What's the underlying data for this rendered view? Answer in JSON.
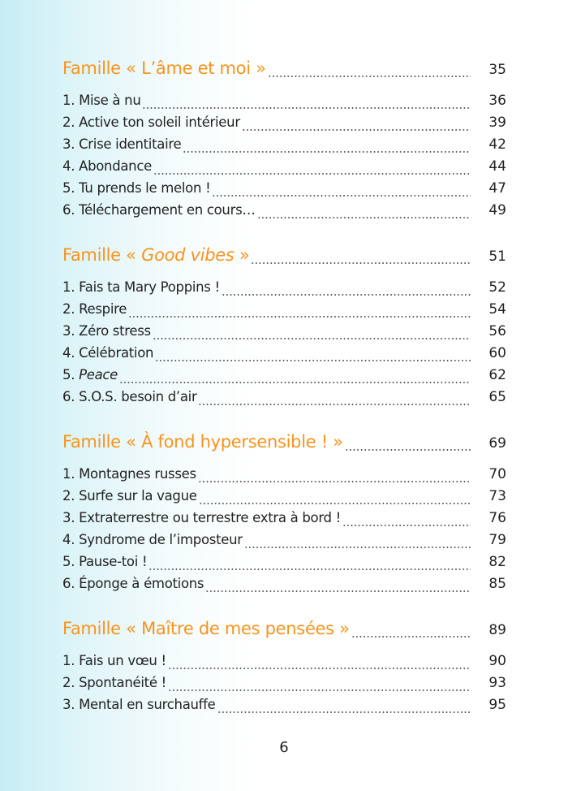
{
  "colors": {
    "heading": "#f7941d",
    "text": "#222222",
    "background_left": "#c6edf4",
    "background_right": "#ffffff"
  },
  "sections": [
    {
      "title_prefix": "Famille « L’âme et moi »",
      "title_italic": "",
      "title_suffix": "",
      "page": "35",
      "items": [
        {
          "label": "1.  Mise à nu",
          "italic": "",
          "suffix": "",
          "page": "36"
        },
        {
          "label": "2. Active ton soleil intérieur",
          "italic": "",
          "suffix": "",
          "page": "39"
        },
        {
          "label": "3. Crise identitaire",
          "italic": "",
          "suffix": "",
          "page": "42"
        },
        {
          "label": "4. Abondance",
          "italic": "",
          "suffix": "",
          "page": "44"
        },
        {
          "label": "5. Tu prends le melon !",
          "italic": "",
          "suffix": "",
          "page": "47"
        },
        {
          "label": "6. Téléchargement en cours…",
          "italic": "",
          "suffix": "",
          "page": "49"
        }
      ]
    },
    {
      "title_prefix": "Famille « ",
      "title_italic": "Good vibes",
      "title_suffix": " »",
      "page": "51",
      "items": [
        {
          "label": "1.  Fais ta Mary Poppins !",
          "italic": "",
          "suffix": "",
          "page": "52"
        },
        {
          "label": "2. Respire",
          "italic": "",
          "suffix": "",
          "page": "54"
        },
        {
          "label": "3. Zéro stress",
          "italic": "",
          "suffix": "",
          "page": "56"
        },
        {
          "label": "4. Célébration",
          "italic": "",
          "suffix": "",
          "page": "60"
        },
        {
          "label": "5. ",
          "italic": "Peace",
          "suffix": "",
          "page": "62"
        },
        {
          "label": "6. S.O.S. besoin d’air",
          "italic": "",
          "suffix": "",
          "page": "65"
        }
      ]
    },
    {
      "title_prefix": "Famille « À fond hypersensible ! »",
      "title_italic": "",
      "title_suffix": "",
      "page": "69",
      "items": [
        {
          "label": "1.  Montagnes russes",
          "italic": "",
          "suffix": "",
          "page": "70"
        },
        {
          "label": "2. Surfe sur la vague",
          "italic": "",
          "suffix": "",
          "page": "73"
        },
        {
          "label": "3. Extraterrestre ou terrestre extra à bord !",
          "italic": "",
          "suffix": "",
          "page": "76"
        },
        {
          "label": "4. Syndrome de l’imposteur",
          "italic": "",
          "suffix": "",
          "page": "79"
        },
        {
          "label": "5. Pause-toi !",
          "italic": "",
          "suffix": "",
          "page": "82"
        },
        {
          "label": "6. Éponge à émotions",
          "italic": "",
          "suffix": "",
          "page": "85"
        }
      ]
    },
    {
      "title_prefix": "Famille « Maître de mes pensées »",
      "title_italic": "",
      "title_suffix": "",
      "page": "89",
      "items": [
        {
          "label": "1.  Fais un vœu !",
          "italic": "",
          "suffix": "",
          "page": "90"
        },
        {
          "label": "2. Spontanéité !",
          "italic": "",
          "suffix": "",
          "page": "93"
        },
        {
          "label": "3. Mental en surchauffe",
          "italic": "",
          "suffix": "",
          "page": "95"
        }
      ]
    }
  ],
  "page_number": "6"
}
